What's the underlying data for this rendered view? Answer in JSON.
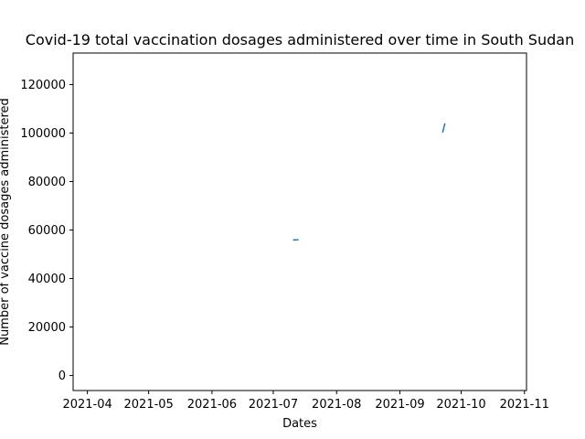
{
  "chart_data": {
    "type": "line",
    "title": "Covid-19 total vaccination dosages administered over time in South Sudan",
    "xlabel": "Dates",
    "ylabel": "Number of vaccine dosages administered",
    "x_tick_labels": [
      "2021-04",
      "2021-05",
      "2021-06",
      "2021-07",
      "2021-08",
      "2021-09",
      "2021-10",
      "2021-11"
    ],
    "y_tick_labels": [
      "0",
      "20000",
      "40000",
      "60000",
      "80000",
      "100000",
      "120000"
    ],
    "series": [
      {
        "color": "#1f77b4",
        "segments": [
          [
            [
              "2021-07-11",
              55900
            ],
            [
              "2021-07-13",
              56000
            ]
          ],
          [
            [
              "2021-09-22",
              100500
            ],
            [
              "2021-09-23",
              103700
            ]
          ]
        ]
      }
    ],
    "xlim": [
      "2021-03-25",
      "2021-11-02"
    ],
    "ylim": [
      -6200,
      133000
    ],
    "grid": false
  }
}
